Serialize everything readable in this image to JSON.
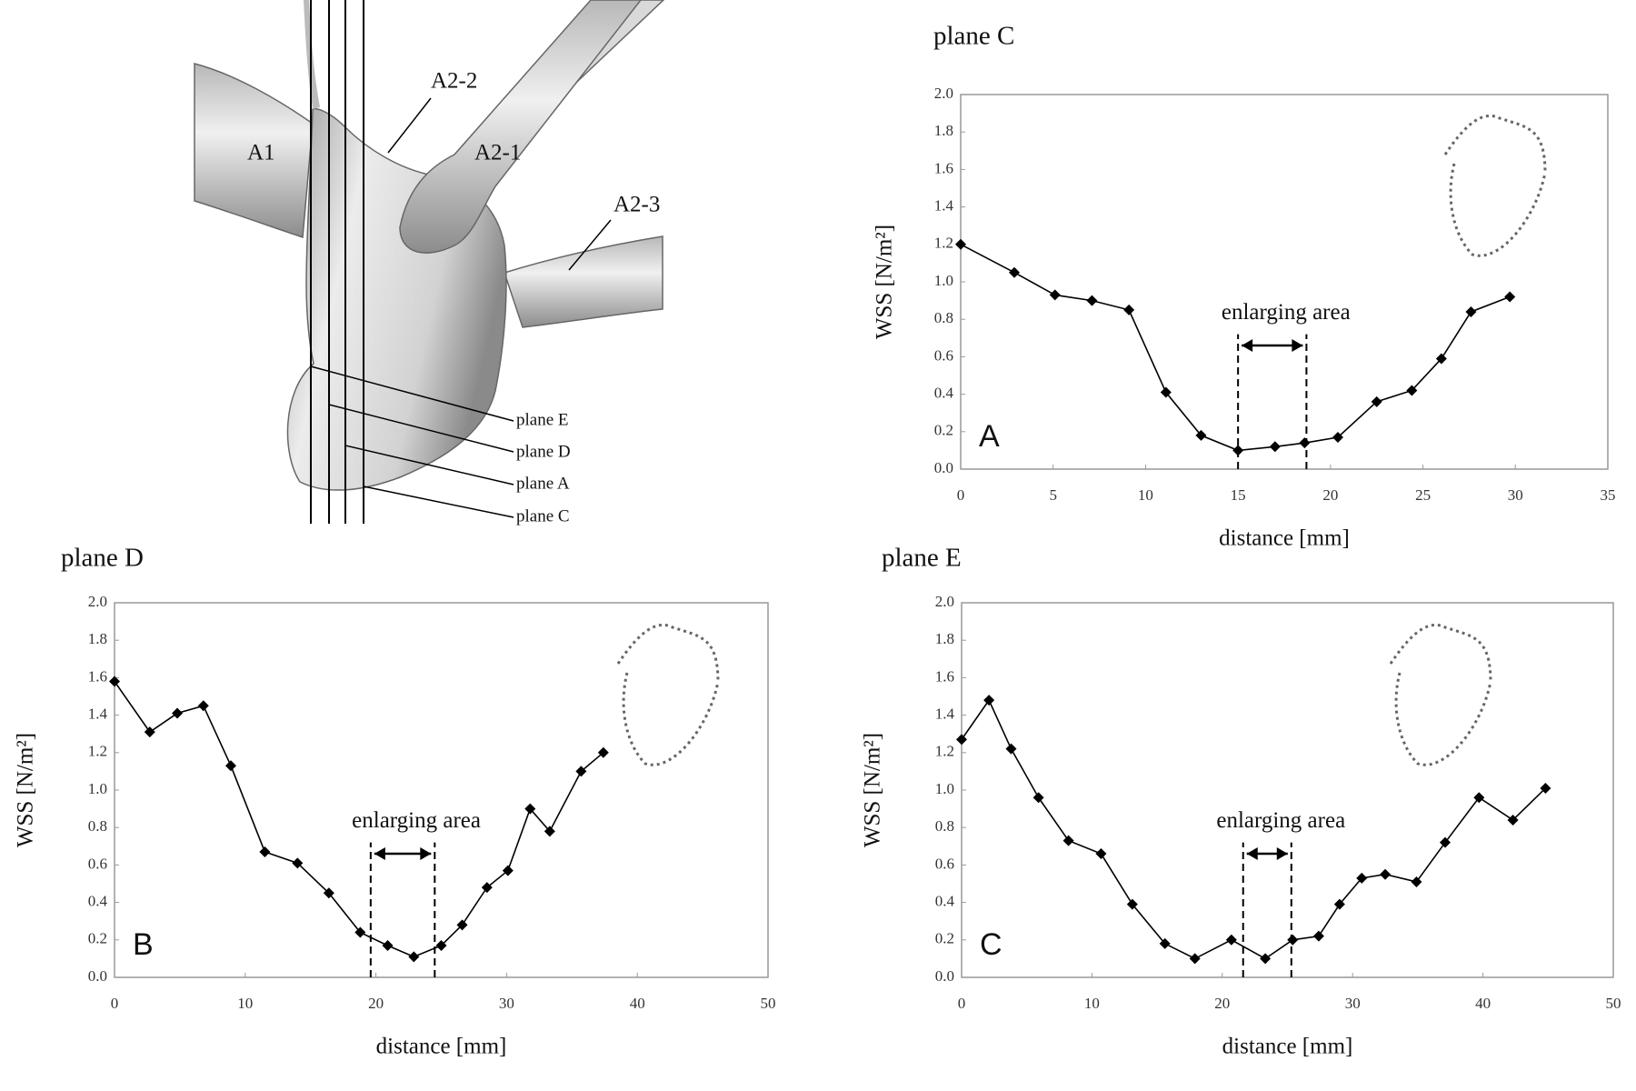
{
  "diagram": {
    "labels": [
      "A1",
      "A2-2",
      "A2-1",
      "A2-3",
      "plane E",
      "plane D",
      "plane A",
      "plane C"
    ]
  },
  "chart_data": [
    {
      "type": "line",
      "title": "plane C",
      "panel_label": "A",
      "x_label": "distance [mm]",
      "y_label": "WSS [N/m²]",
      "x": [
        0,
        2.9,
        5.1,
        7.1,
        9.1,
        11.1,
        13.0,
        15.0,
        17.0,
        18.6,
        20.4,
        22.5,
        24.4,
        26.0,
        27.6,
        29.7
      ],
      "series": [
        {
          "color": "#000000",
          "values": [
            1.2,
            1.05,
            0.93,
            0.9,
            0.85,
            0.41,
            0.18,
            0.1,
            0.12,
            0.14,
            0.17,
            0.36,
            0.42,
            0.59,
            0.84,
            0.92
          ]
        }
      ],
      "annotations": [
        {
          "text": "enlarging area",
          "x_range": [
            15,
            18.7
          ]
        }
      ],
      "xlim": [
        0,
        35
      ],
      "xticks": [
        0,
        5,
        10,
        15,
        20,
        25,
        30,
        35
      ],
      "ylim": [
        0,
        2
      ],
      "yticks": [
        {
          "value": 0,
          "label": "0.0"
        },
        0.2,
        0.4,
        0.6,
        0.8,
        {
          "value": 1,
          "label": "1.0"
        },
        1.2,
        1.4,
        1.6,
        1.8,
        {
          "value": 2,
          "label": "2.0"
        }
      ]
    },
    {
      "type": "line",
      "title": "plane D",
      "panel_label": "B",
      "x_label": "distance [mm]",
      "y_label": "WSS [N/m²]",
      "x": [
        0,
        2.7,
        4.8,
        6.8,
        8.9,
        11.5,
        14.0,
        16.4,
        18.8,
        20.9,
        22.9,
        25.0,
        26.6,
        28.5,
        30.1,
        31.8,
        33.3,
        35.7,
        37.4
      ],
      "series": [
        {
          "color": "#000000",
          "values": [
            1.58,
            1.31,
            1.41,
            1.45,
            1.13,
            0.67,
            0.61,
            0.45,
            0.24,
            0.17,
            0.11,
            0.17,
            0.28,
            0.48,
            0.57,
            0.9,
            0.78,
            1.1,
            1.2
          ]
        }
      ],
      "annotations": [
        {
          "text": "enlarging area",
          "x_range": [
            19.6,
            24.5
          ]
        }
      ],
      "xlim": [
        0,
        50
      ],
      "xticks": [
        0,
        10,
        20,
        30,
        40,
        50
      ],
      "ylim": [
        0,
        2
      ],
      "yticks": [
        {
          "value": 0,
          "label": "0.0"
        },
        0.2,
        0.4,
        0.6,
        0.8,
        {
          "value": 1,
          "label": "1.0"
        },
        1.2,
        1.4,
        1.6,
        1.8,
        {
          "value": 2,
          "label": "2.0"
        }
      ]
    },
    {
      "type": "line",
      "title": "plane E",
      "panel_label": "C",
      "x_label": "distance [mm]",
      "y_label": "WSS [N/m²]",
      "x": [
        0,
        2.1,
        3.8,
        5.9,
        8.2,
        10.7,
        13.1,
        15.6,
        17.9,
        20.7,
        23.3,
        25.4,
        27.4,
        29.0,
        30.7,
        32.5,
        34.9,
        37.1,
        39.7,
        42.3,
        44.8
      ],
      "series": [
        {
          "color": "#000000",
          "values": [
            1.27,
            1.48,
            1.22,
            0.96,
            0.73,
            0.66,
            0.39,
            0.18,
            0.1,
            0.2,
            0.1,
            0.2,
            0.22,
            0.39,
            0.53,
            0.55,
            0.51,
            0.72,
            0.96,
            0.84,
            1.01
          ]
        }
      ],
      "annotations": [
        {
          "text": "enlarging area",
          "x_range": [
            21.6,
            25.3
          ]
        }
      ],
      "xlim": [
        0,
        50
      ],
      "xticks": [
        0,
        10,
        20,
        30,
        40,
        50
      ],
      "ylim": [
        0,
        2
      ],
      "yticks": [
        {
          "value": 0,
          "label": "0.0"
        },
        0.2,
        0.4,
        0.6,
        0.8,
        {
          "value": 1,
          "label": "1.0"
        },
        1.2,
        1.4,
        1.6,
        1.8,
        {
          "value": 2,
          "label": "2.0"
        }
      ]
    }
  ]
}
